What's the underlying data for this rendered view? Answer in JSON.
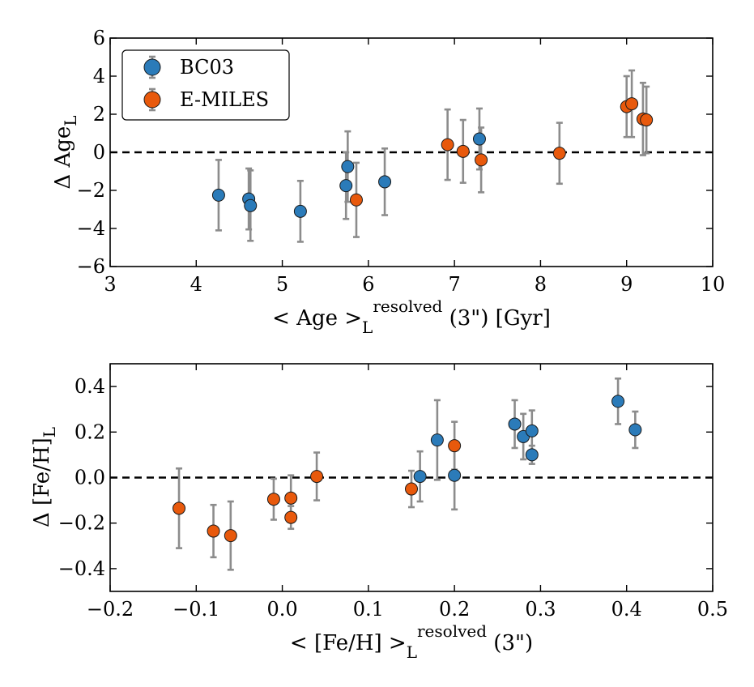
{
  "colors": {
    "bc03": "#2b7bb9",
    "emiles": "#e8590c",
    "error": "#8c8c8c"
  },
  "chart_data": [
    {
      "type": "scatter",
      "id": "age",
      "title": "",
      "xlabel": "< Age >",
      "xlabel_sub": "L",
      "xlabel_sup": "resolved",
      "xlabel_suffix": " (3\") [Gyr]",
      "ylabel": "Δ Age",
      "ylabel_sub": "L",
      "xlim": [
        3,
        10
      ],
      "ylim": [
        -6,
        6
      ],
      "xticks": [
        3,
        4,
        5,
        6,
        7,
        8,
        9,
        10
      ],
      "yticks": [
        -6,
        -4,
        -2,
        0,
        2,
        4,
        6
      ],
      "xtick_labels": [
        "3",
        "4",
        "5",
        "6",
        "7",
        "8",
        "9",
        "10"
      ],
      "ytick_labels": [
        "−6",
        "−4",
        "−2",
        "0",
        "2",
        "4",
        "6"
      ],
      "zero_line": true,
      "legend": {
        "placement": "top-left",
        "entries": [
          "BC03",
          "E-MILES"
        ]
      },
      "series": [
        {
          "name": "BC03",
          "color_key": "bc03",
          "points": [
            {
              "x": 4.26,
              "y": -2.25,
              "err": 1.85
            },
            {
              "x": 4.61,
              "y": -2.45,
              "err": 1.6
            },
            {
              "x": 4.63,
              "y": -2.8,
              "err": 1.85
            },
            {
              "x": 5.21,
              "y": -3.1,
              "err": 1.6
            },
            {
              "x": 5.74,
              "y": -1.75,
              "err": 1.75
            },
            {
              "x": 5.76,
              "y": -0.75,
              "err": 1.85
            },
            {
              "x": 6.19,
              "y": -1.55,
              "err": 1.75
            },
            {
              "x": 7.29,
              "y": 0.7,
              "err": 1.6
            }
          ]
        },
        {
          "name": "E-MILES",
          "color_key": "emiles",
          "points": [
            {
              "x": 5.86,
              "y": -2.5,
              "err": 1.95
            },
            {
              "x": 6.92,
              "y": 0.4,
              "err": 1.85
            },
            {
              "x": 7.1,
              "y": 0.05,
              "err": 1.65
            },
            {
              "x": 7.31,
              "y": -0.4,
              "err": 1.7
            },
            {
              "x": 8.22,
              "y": -0.05,
              "err": 1.6
            },
            {
              "x": 9.0,
              "y": 2.4,
              "err": 1.6
            },
            {
              "x": 9.06,
              "y": 2.55,
              "err": 1.75
            },
            {
              "x": 9.19,
              "y": 1.75,
              "err": 1.9
            },
            {
              "x": 9.23,
              "y": 1.7,
              "err": 1.75
            }
          ]
        }
      ]
    },
    {
      "type": "scatter",
      "id": "feh",
      "title": "",
      "xlabel": "< [Fe/H] >",
      "xlabel_sub": "L",
      "xlabel_sup": "resolved",
      "xlabel_suffix": " (3\")",
      "ylabel": "Δ [Fe/H]",
      "ylabel_sub": "L",
      "xlim": [
        -0.2,
        0.5
      ],
      "ylim": [
        -0.5,
        0.5
      ],
      "xticks": [
        -0.2,
        -0.1,
        0.0,
        0.1,
        0.2,
        0.3,
        0.4,
        0.5
      ],
      "yticks": [
        -0.4,
        -0.2,
        0.0,
        0.2,
        0.4
      ],
      "xtick_labels": [
        "−0.2",
        "−0.1",
        "0.0",
        "0.1",
        "0.2",
        "0.3",
        "0.4",
        "0.5"
      ],
      "ytick_labels": [
        "−0.4",
        "−0.2",
        "0.0",
        "0.2",
        "0.4"
      ],
      "zero_line": true,
      "series": [
        {
          "name": "BC03",
          "color_key": "bc03",
          "points": [
            {
              "x": 0.16,
              "y": 0.005,
              "err": 0.11
            },
            {
              "x": 0.18,
              "y": 0.165,
              "err": 0.175
            },
            {
              "x": 0.2,
              "y": 0.01,
              "err": 0.15
            },
            {
              "x": 0.27,
              "y": 0.235,
              "err": 0.105
            },
            {
              "x": 0.28,
              "y": 0.18,
              "err": 0.1
            },
            {
              "x": 0.29,
              "y": 0.205,
              "err": 0.09
            },
            {
              "x": 0.29,
              "y": 0.1,
              "err": 0.04
            },
            {
              "x": 0.39,
              "y": 0.335,
              "err": 0.1
            },
            {
              "x": 0.41,
              "y": 0.21,
              "err": 0.08
            }
          ]
        },
        {
          "name": "E-MILES",
          "color_key": "emiles",
          "points": [
            {
              "x": -0.12,
              "y": -0.135,
              "err": 0.175
            },
            {
              "x": -0.08,
              "y": -0.235,
              "err": 0.115
            },
            {
              "x": -0.06,
              "y": -0.255,
              "err": 0.15
            },
            {
              "x": -0.01,
              "y": -0.095,
              "err": 0.09
            },
            {
              "x": 0.01,
              "y": -0.09,
              "err": 0.1
            },
            {
              "x": 0.01,
              "y": -0.175,
              "err": 0.05
            },
            {
              "x": 0.04,
              "y": 0.005,
              "err": 0.105
            },
            {
              "x": 0.15,
              "y": -0.05,
              "err": 0.08
            },
            {
              "x": 0.2,
              "y": 0.14,
              "err": 0.105
            }
          ]
        }
      ]
    }
  ]
}
